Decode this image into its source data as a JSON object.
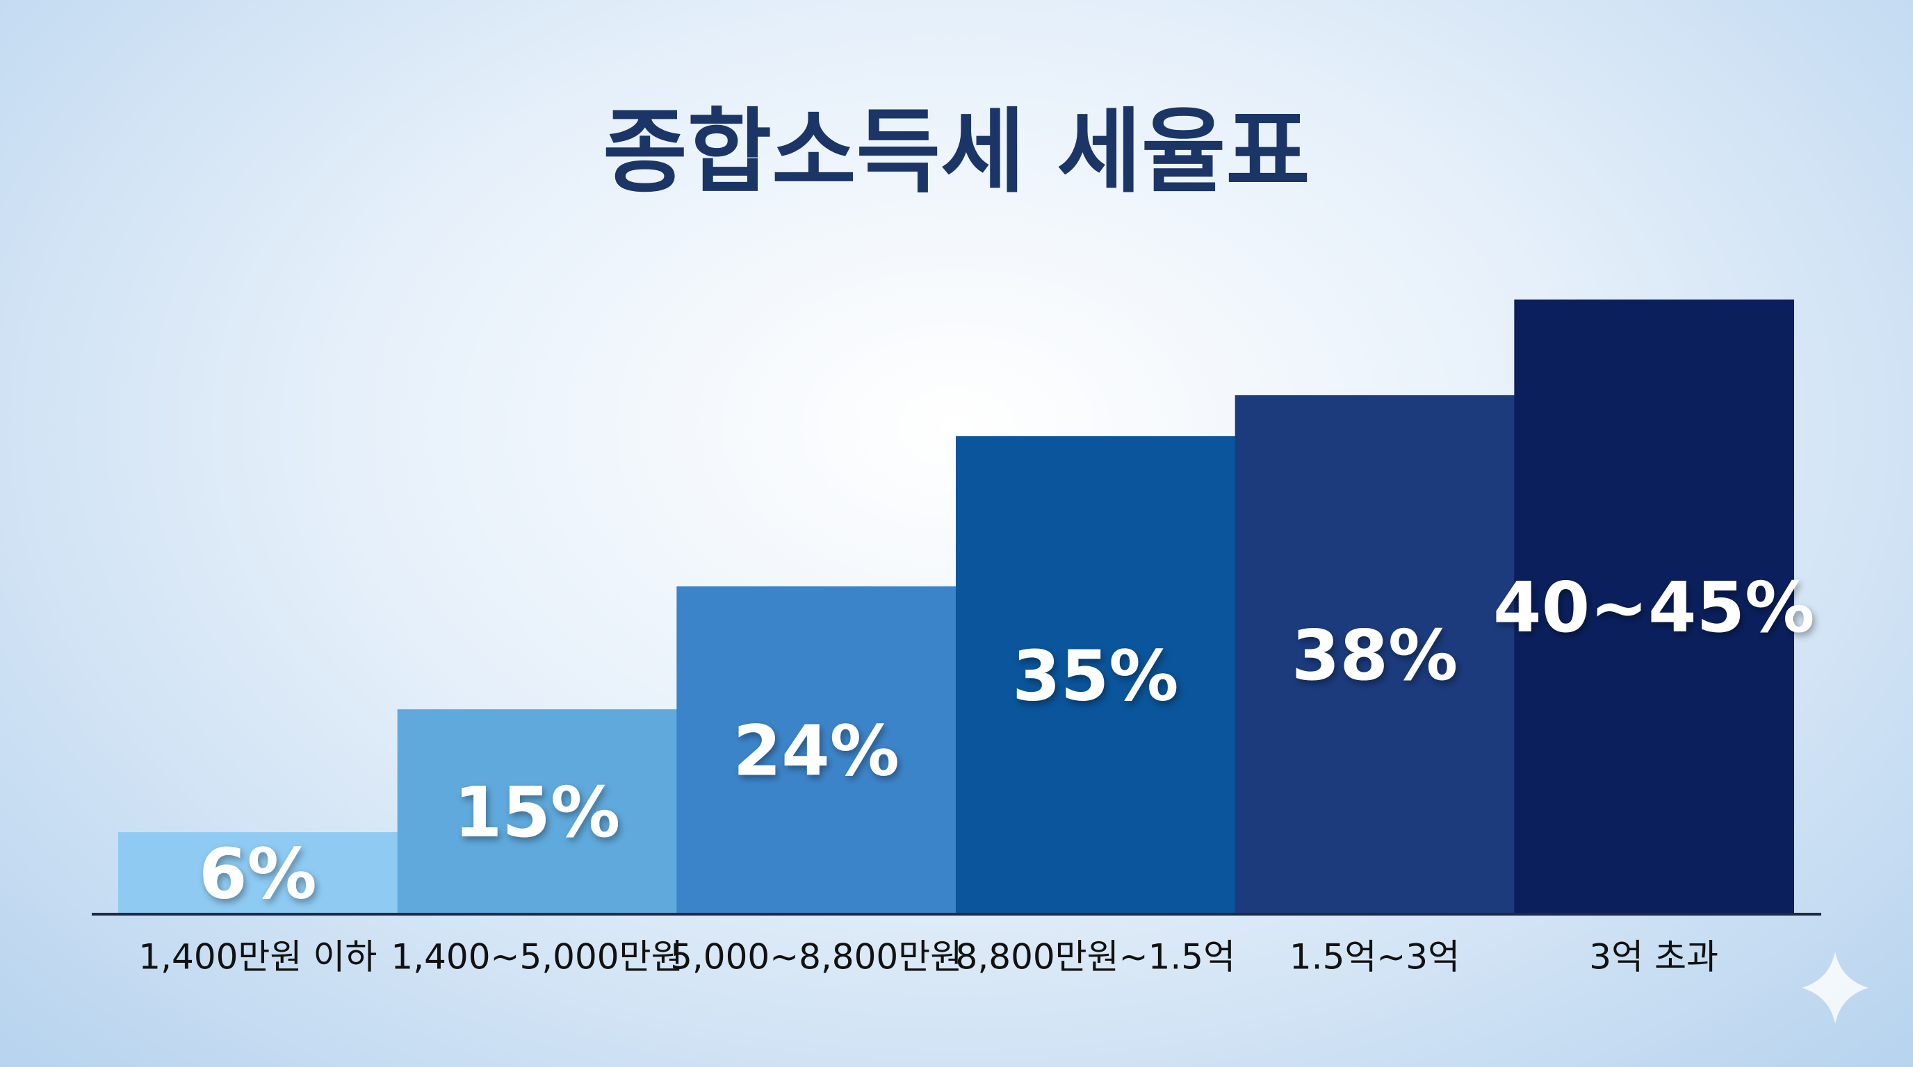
{
  "chart_data": {
    "type": "bar",
    "title": "종합소득세 세율표",
    "categories": [
      "1,400만원 이하",
      "1,400~5,000만원",
      "5,000~8,800만원",
      "8,800만원~1.5억",
      "1.5억~3억",
      "3억 초과"
    ],
    "values": [
      6,
      15,
      24,
      35,
      38,
      45
    ],
    "value_labels": [
      "6%",
      "15%",
      "24%",
      "35%",
      "38%",
      "40~45%"
    ],
    "colors": [
      "#8ecaf2",
      "#5fa9dc",
      "#3c84c9",
      "#0a559b",
      "#1b3b7d",
      "#0a1f5c"
    ],
    "ylim": [
      0,
      50
    ]
  }
}
